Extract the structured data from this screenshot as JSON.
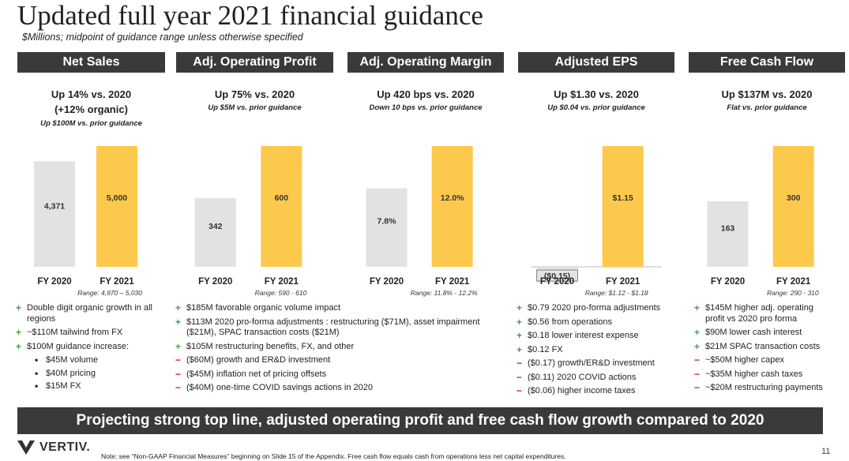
{
  "title": "Updated full year 2021 financial guidance",
  "subtitle": "$Millions; midpoint of guidance range unless otherwise specified",
  "colors": {
    "fy2020": "#e2e2e2",
    "fy2021": "#fdc94c",
    "header": "#3a3a3a",
    "plus": "#4a9a4a",
    "minus": "#d02020"
  },
  "chart_data": [
    {
      "type": "bar",
      "title": "Net Sales",
      "head_lines": [
        "Up 14% vs. 2020",
        "(+12% organic)"
      ],
      "sub": "Up $100M vs. prior guidance",
      "categories": [
        "FY 2020",
        "FY 2021"
      ],
      "values": [
        4371,
        5000
      ],
      "labels": [
        "4,371",
        "5,000"
      ],
      "range": "Range: 4,970 – 5,030"
    },
    {
      "type": "bar",
      "title": "Adj. Operating Profit",
      "head_lines": [
        "Up 75% vs. 2020"
      ],
      "sub": "Up $5M vs. prior guidance",
      "categories": [
        "FY 2020",
        "FY 2021"
      ],
      "values": [
        342,
        600
      ],
      "labels": [
        "342",
        "600"
      ],
      "range": "Range: 590 - 610"
    },
    {
      "type": "bar",
      "title": "Adj. Operating Margin",
      "head_lines": [
        "Up 420 bps vs. 2020"
      ],
      "sub": "Down 10 bps vs. prior guidance",
      "categories": [
        "FY 2020",
        "FY 2021"
      ],
      "values": [
        7.8,
        12.0
      ],
      "labels": [
        "7.8%",
        "12.0%"
      ],
      "range": "Range: 11.8% - 12.2%"
    },
    {
      "type": "bar",
      "title": "Adjusted EPS",
      "head_lines": [
        "Up $1.30 vs. 2020"
      ],
      "sub": "Up $0.04 vs. prior guidance",
      "categories": [
        "FY 2020",
        "FY 2021"
      ],
      "values": [
        -0.15,
        1.15
      ],
      "labels": [
        "($0.15)",
        "$1.15"
      ],
      "range": "Range: $1.12 - $1.18"
    },
    {
      "type": "bar",
      "title": "Free Cash Flow",
      "head_lines": [
        "Up $137M vs. 2020"
      ],
      "sub": "Flat vs. prior guidance",
      "categories": [
        "FY 2020",
        "FY 2021"
      ],
      "values": [
        163,
        300
      ],
      "labels": [
        "163",
        "300"
      ],
      "range": "Range: 290 - 310"
    }
  ],
  "bullets": [
    [
      {
        "sign": "+",
        "text": "Double digit organic growth in all regions"
      },
      {
        "sign": "+",
        "text": "~$110M tailwind from FX"
      },
      {
        "sign": "+",
        "text": "$100M guidance increase:"
      },
      {
        "sign": "•",
        "text": "$45M volume",
        "sub": true
      },
      {
        "sign": "•",
        "text": "$40M pricing",
        "sub": true
      },
      {
        "sign": "•",
        "text": "$15M FX",
        "sub": true
      }
    ],
    [
      {
        "sign": "+",
        "text": "$185M favorable organic volume impact"
      },
      {
        "sign": "+",
        "text": "$113M 2020 pro-forma adjustments : restructuring ($71M), asset impairment ($21M), SPAC transaction costs ($21M)"
      },
      {
        "sign": "+",
        "text": "$105M restructuring benefits, FX, and other"
      },
      {
        "sign": "−",
        "text": "($60M) growth and ER&D investment"
      },
      {
        "sign": "−",
        "text": "($45M) inflation net of pricing offsets"
      },
      {
        "sign": "−",
        "text": "($40M) one-time COVID savings actions in 2020"
      }
    ],
    [
      {
        "sign": "+",
        "text": "$0.79 2020 pro-forma adjustments"
      },
      {
        "sign": "+",
        "text": "$0.56 from operations"
      },
      {
        "sign": "+",
        "text": "$0.18 lower interest expense"
      },
      {
        "sign": "+",
        "text": "$0.12 FX"
      },
      {
        "sign": "−",
        "text": "($0.17) growth/ER&D investment"
      },
      {
        "sign": "−",
        "text": "($0.11) 2020 COVID actions"
      },
      {
        "sign": "−",
        "text": "($0.06) higher income taxes"
      }
    ],
    [
      {
        "sign": "+",
        "text": "$145M higher adj. operating profit vs 2020 pro forma"
      },
      {
        "sign": "+",
        "text": "$90M lower cash interest"
      },
      {
        "sign": "+",
        "text": "$21M SPAC transaction costs"
      },
      {
        "sign": "−",
        "text": "~$50M higher capex"
      },
      {
        "sign": "−",
        "text": "~$35M higher cash taxes"
      },
      {
        "sign": "−",
        "text": "~$20M restructuring payments"
      }
    ]
  ],
  "banner": "Projecting strong top line, adjusted operating profit and free cash flow growth compared to 2020",
  "logo_text": "VERTIV.",
  "note": "Note: see “Non-GAAP Financial Measures” beginning on Slide 15 of the Appendix.  Free cash flow equals cash from operations less net capital expenditures.",
  "page_number": "11"
}
